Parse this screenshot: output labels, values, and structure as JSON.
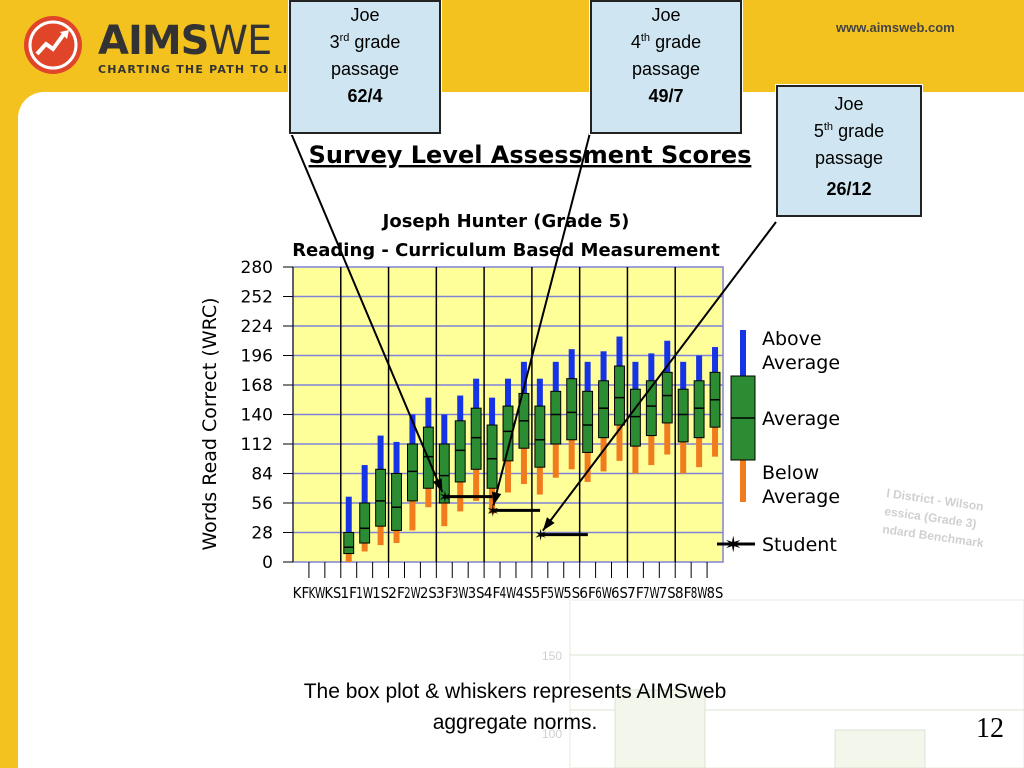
{
  "header": {
    "logo_text_bold": "AIMS",
    "logo_text_light": "WE",
    "tagline": "CHARTING THE PATH TO LITER",
    "website": "www.aimsweb.com"
  },
  "callouts": [
    {
      "name": "Joe",
      "grade_num": "3",
      "grade_suffix": "rd",
      "grade_word": "grade",
      "passage": "passage",
      "score": "62/4"
    },
    {
      "name": "Joe",
      "grade_num": "4",
      "grade_suffix": "th",
      "grade_word": "grade",
      "passage": "passage",
      "score": "49/7"
    },
    {
      "name": "Joe",
      "grade_num": "5",
      "grade_suffix": "th",
      "grade_word": "grade",
      "passage": "passage",
      "score": "26/12"
    }
  ],
  "caption_line1": "The box plot & whiskers represents AIMSweb",
  "caption_line2": "aggregate norms.",
  "slide_number": "12",
  "background_graph_text": [
    "l District - Wilson",
    "essica (Grade 3)",
    "ndard Benchmark",
    "150",
    "100"
  ],
  "colors": {
    "plot_bg": "#ffff99",
    "grid": "#7e82d8",
    "above": "#1733e6",
    "average": "#2c8c33",
    "below": "#f07c1e",
    "student": "#000000",
    "callout_bg": "#cfe6f2",
    "brand_yellow": "#f4c21e"
  },
  "chart_data": {
    "type": "box",
    "title": "Survey Level Assessment Scores",
    "subtitle1": "Joseph Hunter (Grade 5)",
    "subtitle2": "Reading - Curriculum Based Measurement",
    "ylabel": "Words Read Correct (WRC)",
    "ylim": [
      0,
      280
    ],
    "yticks": [
      0,
      28,
      56,
      84,
      112,
      140,
      168,
      196,
      224,
      252,
      280
    ],
    "categories": [
      "KF",
      "KW",
      "KS",
      "1F",
      "1W",
      "1S",
      "2F",
      "2W",
      "2S",
      "3F",
      "3W",
      "3S",
      "4F",
      "4W",
      "4S",
      "5F",
      "5W",
      "5S",
      "6F",
      "6W",
      "6S",
      "7F",
      "7W",
      "7S",
      "8F",
      "8W",
      "8S"
    ],
    "tick_labels": [
      "KF",
      "KW",
      "KS",
      "1F",
      "1W",
      "1S",
      "2F",
      "2W",
      "2S",
      "3F",
      "3W",
      "3S",
      "4F",
      "4W",
      "4S",
      "5F",
      "5W",
      "5S",
      "6F",
      "6W",
      "6S",
      "7F",
      "7W",
      "7S",
      "8F",
      "8W",
      "8S"
    ],
    "boxes": [
      null,
      null,
      null,
      {
        "min": 0,
        "q1": 8,
        "median": 14,
        "q3": 28,
        "max": 62
      },
      {
        "min": 10,
        "q1": 18,
        "median": 32,
        "q3": 56,
        "max": 92
      },
      {
        "min": 16,
        "q1": 34,
        "median": 58,
        "q3": 88,
        "max": 120
      },
      {
        "min": 18,
        "q1": 30,
        "median": 52,
        "q3": 84,
        "max": 114
      },
      {
        "min": 30,
        "q1": 58,
        "median": 86,
        "q3": 112,
        "max": 140
      },
      {
        "min": 52,
        "q1": 70,
        "median": 100,
        "q3": 128,
        "max": 156
      },
      {
        "min": 34,
        "q1": 56,
        "median": 82,
        "q3": 112,
        "max": 140
      },
      {
        "min": 48,
        "q1": 76,
        "median": 106,
        "q3": 134,
        "max": 158
      },
      {
        "min": 58,
        "q1": 88,
        "median": 118,
        "q3": 146,
        "max": 174
      },
      {
        "min": 46,
        "q1": 70,
        "median": 98,
        "q3": 130,
        "max": 156
      },
      {
        "min": 66,
        "q1": 96,
        "median": 124,
        "q3": 148,
        "max": 174
      },
      {
        "min": 74,
        "q1": 108,
        "median": 134,
        "q3": 160,
        "max": 190
      },
      {
        "min": 64,
        "q1": 90,
        "median": 116,
        "q3": 148,
        "max": 174
      },
      {
        "min": 80,
        "q1": 112,
        "median": 140,
        "q3": 162,
        "max": 190
      },
      {
        "min": 88,
        "q1": 116,
        "median": 142,
        "q3": 174,
        "max": 202
      },
      {
        "min": 76,
        "q1": 104,
        "median": 130,
        "q3": 162,
        "max": 190
      },
      {
        "min": 86,
        "q1": 118,
        "median": 146,
        "q3": 172,
        "max": 200
      },
      {
        "min": 96,
        "q1": 130,
        "median": 156,
        "q3": 186,
        "max": 214
      },
      {
        "min": 84,
        "q1": 110,
        "median": 138,
        "q3": 164,
        "max": 190
      },
      {
        "min": 92,
        "q1": 120,
        "median": 148,
        "q3": 172,
        "max": 198
      },
      {
        "min": 102,
        "q1": 132,
        "median": 158,
        "q3": 180,
        "max": 210
      },
      {
        "min": 84,
        "q1": 114,
        "median": 140,
        "q3": 164,
        "max": 190
      },
      {
        "min": 90,
        "q1": 118,
        "median": 146,
        "q3": 172,
        "max": 196
      },
      {
        "min": 100,
        "q1": 128,
        "median": 154,
        "q3": 180,
        "max": 204
      }
    ],
    "student": [
      {
        "category": "3F",
        "value": 62
      },
      {
        "category": "4F",
        "value": 49
      },
      {
        "category": "5F",
        "value": 26
      }
    ],
    "grade_separators_after": [
      "KS",
      "1S",
      "2S",
      "3S",
      "4S",
      "5S",
      "6S",
      "7S"
    ],
    "legend": [
      "Above Average",
      "Average",
      "Below Average",
      "Student"
    ],
    "legend_placement": "right",
    "grid": true
  }
}
